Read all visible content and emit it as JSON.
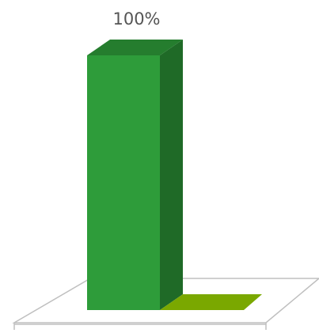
{
  "chart_data": {
    "type": "bar",
    "categories": [
      "",
      ""
    ],
    "values": [
      100,
      0
    ],
    "data_labels": [
      "100%",
      ""
    ],
    "ylim": [
      0,
      100
    ],
    "grid": false,
    "style": "3d-column",
    "colors": [
      "#2e9c3a",
      "#7aa800"
    ]
  }
}
